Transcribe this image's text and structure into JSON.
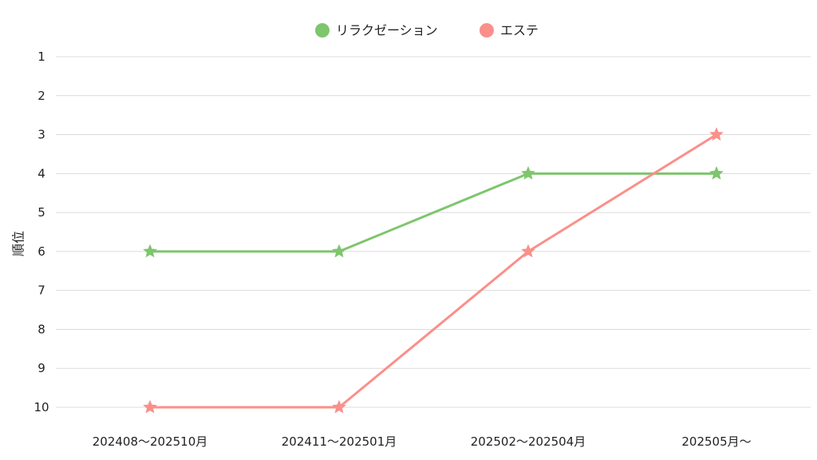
{
  "chart_data": {
    "type": "line",
    "categories": [
      "202408〜202510月",
      "202411〜202501月",
      "202502〜202504月",
      "202505月〜"
    ],
    "series": [
      {
        "name": "リラクゼーション",
        "values": [
          6,
          6,
          4,
          4
        ],
        "color": "#7dc66d"
      },
      {
        "name": "エステ",
        "values": [
          10,
          10,
          6,
          3
        ],
        "color": "#fb8f8a"
      }
    ],
    "title": "",
    "xlabel": "",
    "ylabel": "順位",
    "y_ticks": [
      1,
      2,
      3,
      4,
      5,
      6,
      7,
      8,
      9,
      10
    ],
    "ylim": [
      1,
      10
    ],
    "y_reversed": true,
    "grid": true,
    "legend_position": "top-center",
    "marker": "star"
  }
}
